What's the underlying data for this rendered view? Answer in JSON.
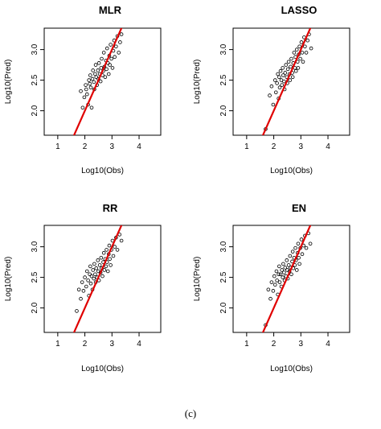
{
  "figure": {
    "caption": "(c)"
  },
  "chart_data": [
    {
      "type": "scatter",
      "title": "MLR",
      "xlabel": "Log10(Obs)",
      "ylabel": "Log10(Pred)",
      "xlim": [
        0.5,
        4.8
      ],
      "ylim": [
        1.6,
        3.35
      ],
      "xticks": [
        "1",
        "2",
        "3",
        "4"
      ],
      "yticks": [
        "2.0",
        "2.5",
        "3.0"
      ],
      "grid": false,
      "reference_line": {
        "color": "#e00000",
        "slope": 1,
        "intercept": 0
      },
      "points": [
        [
          1.85,
          2.32
        ],
        [
          1.92,
          2.05
        ],
        [
          1.98,
          2.22
        ],
        [
          2.03,
          2.42
        ],
        [
          2.05,
          2.35
        ],
        [
          2.08,
          2.27
        ],
        [
          2.12,
          2.1
        ],
        [
          2.15,
          2.5
        ],
        [
          2.18,
          2.44
        ],
        [
          2.2,
          2.58
        ],
        [
          2.22,
          2.38
        ],
        [
          2.25,
          2.05
        ],
        [
          2.28,
          2.52
        ],
        [
          2.3,
          2.66
        ],
        [
          2.33,
          2.47
        ],
        [
          2.35,
          2.35
        ],
        [
          2.38,
          2.6
        ],
        [
          2.4,
          2.75
        ],
        [
          2.42,
          2.55
        ],
        [
          2.45,
          2.42
        ],
        [
          2.48,
          2.66
        ],
        [
          2.5,
          2.52
        ],
        [
          2.52,
          2.78
        ],
        [
          2.55,
          2.6
        ],
        [
          2.58,
          2.48
        ],
        [
          2.6,
          2.7
        ],
        [
          2.62,
          2.85
        ],
        [
          2.65,
          2.58
        ],
        [
          2.68,
          2.65
        ],
        [
          2.7,
          2.95
        ],
        [
          2.72,
          2.72
        ],
        [
          2.75,
          2.55
        ],
        [
          2.78,
          2.82
        ],
        [
          2.8,
          2.68
        ],
        [
          2.82,
          3.02
        ],
        [
          2.85,
          2.78
        ],
        [
          2.88,
          2.6
        ],
        [
          2.9,
          2.9
        ],
        [
          2.92,
          2.75
        ],
        [
          2.95,
          3.08
        ],
        [
          2.98,
          2.85
        ],
        [
          3.02,
          2.7
        ],
        [
          3.05,
          2.98
        ],
        [
          3.08,
          3.15
        ],
        [
          3.1,
          2.88
        ],
        [
          3.15,
          3.05
        ],
        [
          3.2,
          3.22
        ],
        [
          3.25,
          2.95
        ],
        [
          3.3,
          3.12
        ],
        [
          3.35,
          3.25
        ]
      ]
    },
    {
      "type": "scatter",
      "title": "LASSO",
      "xlabel": "Log10(Obs)",
      "ylabel": "Log10(Pred)",
      "xlim": [
        0.5,
        4.8
      ],
      "ylim": [
        1.6,
        3.35
      ],
      "xticks": [
        "1",
        "2",
        "3",
        "4"
      ],
      "yticks": [
        "2.0",
        "2.5",
        "3.0"
      ],
      "grid": false,
      "reference_line": {
        "color": "#e00000",
        "slope": 1,
        "intercept": 0
      },
      "points": [
        [
          1.7,
          1.7
        ],
        [
          1.85,
          2.25
        ],
        [
          1.92,
          2.4
        ],
        [
          1.98,
          2.1
        ],
        [
          2.05,
          2.5
        ],
        [
          2.08,
          2.3
        ],
        [
          2.12,
          2.45
        ],
        [
          2.15,
          2.6
        ],
        [
          2.18,
          2.2
        ],
        [
          2.2,
          2.55
        ],
        [
          2.22,
          2.38
        ],
        [
          2.25,
          2.65
        ],
        [
          2.28,
          2.5
        ],
        [
          2.3,
          2.42
        ],
        [
          2.33,
          2.7
        ],
        [
          2.35,
          2.58
        ],
        [
          2.38,
          2.48
        ],
        [
          2.4,
          2.35
        ],
        [
          2.42,
          2.62
        ],
        [
          2.45,
          2.75
        ],
        [
          2.48,
          2.55
        ],
        [
          2.5,
          2.45
        ],
        [
          2.52,
          2.68
        ],
        [
          2.55,
          2.8
        ],
        [
          2.58,
          2.6
        ],
        [
          2.6,
          2.5
        ],
        [
          2.62,
          2.72
        ],
        [
          2.65,
          2.85
        ],
        [
          2.68,
          2.62
        ],
        [
          2.7,
          2.55
        ],
        [
          2.72,
          2.78
        ],
        [
          2.75,
          2.95
        ],
        [
          2.78,
          2.7
        ],
        [
          2.8,
          2.88
        ],
        [
          2.82,
          2.65
        ],
        [
          2.85,
          3.0
        ],
        [
          2.88,
          2.8
        ],
        [
          2.9,
          2.7
        ],
        [
          2.92,
          2.92
        ],
        [
          2.95,
          3.05
        ],
        [
          2.98,
          2.85
        ],
        [
          3.02,
          3.12
        ],
        [
          3.05,
          2.95
        ],
        [
          3.08,
          2.8
        ],
        [
          3.12,
          3.2
        ],
        [
          3.15,
          3.05
        ],
        [
          3.2,
          2.95
        ],
        [
          3.25,
          3.15
        ],
        [
          3.3,
          3.25
        ],
        [
          3.38,
          3.02
        ]
      ]
    },
    {
      "type": "scatter",
      "title": "RR",
      "xlabel": "Log10(Obs)",
      "ylabel": "Log10(Pred)",
      "xlim": [
        0.5,
        4.8
      ],
      "ylim": [
        1.6,
        3.35
      ],
      "xticks": [
        "1",
        "2",
        "3",
        "4"
      ],
      "yticks": [
        "2.0",
        "2.5",
        "3.0"
      ],
      "grid": false,
      "reference_line": {
        "color": "#e00000",
        "slope": 1,
        "intercept": 0
      },
      "points": [
        [
          1.7,
          1.95
        ],
        [
          1.78,
          2.3
        ],
        [
          1.85,
          2.15
        ],
        [
          1.9,
          2.42
        ],
        [
          1.95,
          2.28
        ],
        [
          2.0,
          2.5
        ],
        [
          2.05,
          2.35
        ],
        [
          2.08,
          2.6
        ],
        [
          2.12,
          2.45
        ],
        [
          2.15,
          2.2
        ],
        [
          2.18,
          2.55
        ],
        [
          2.2,
          2.68
        ],
        [
          2.22,
          2.4
        ],
        [
          2.25,
          2.52
        ],
        [
          2.28,
          2.3
        ],
        [
          2.3,
          2.62
        ],
        [
          2.33,
          2.48
        ],
        [
          2.35,
          2.72
        ],
        [
          2.38,
          2.55
        ],
        [
          2.4,
          2.42
        ],
        [
          2.42,
          2.65
        ],
        [
          2.45,
          2.5
        ],
        [
          2.48,
          2.78
        ],
        [
          2.5,
          2.6
        ],
        [
          2.52,
          2.45
        ],
        [
          2.55,
          2.7
        ],
        [
          2.58,
          2.58
        ],
        [
          2.6,
          2.82
        ],
        [
          2.62,
          2.65
        ],
        [
          2.65,
          2.52
        ],
        [
          2.68,
          2.75
        ],
        [
          2.7,
          2.9
        ],
        [
          2.72,
          2.62
        ],
        [
          2.75,
          2.8
        ],
        [
          2.78,
          2.68
        ],
        [
          2.8,
          2.95
        ],
        [
          2.82,
          2.75
        ],
        [
          2.85,
          2.6
        ],
        [
          2.88,
          2.88
        ],
        [
          2.9,
          3.02
        ],
        [
          2.92,
          2.8
        ],
        [
          2.95,
          2.7
        ],
        [
          2.98,
          2.95
        ],
        [
          3.02,
          3.1
        ],
        [
          3.05,
          2.85
        ],
        [
          3.1,
          3.0
        ],
        [
          3.15,
          3.15
        ],
        [
          3.2,
          2.95
        ],
        [
          3.28,
          3.2
        ],
        [
          3.35,
          3.1
        ]
      ]
    },
    {
      "type": "scatter",
      "title": "EN",
      "xlabel": "Log10(Obs)",
      "ylabel": "Log10(Pred)",
      "xlim": [
        0.5,
        4.8
      ],
      "ylim": [
        1.6,
        3.35
      ],
      "xticks": [
        "1",
        "2",
        "3",
        "4"
      ],
      "yticks": [
        "2.0",
        "2.5",
        "3.0"
      ],
      "grid": false,
      "reference_line": {
        "color": "#e00000",
        "slope": 1,
        "intercept": 0
      },
      "points": [
        [
          1.7,
          1.72
        ],
        [
          1.8,
          2.3
        ],
        [
          1.88,
          2.15
        ],
        [
          1.92,
          2.42
        ],
        [
          1.98,
          2.28
        ],
        [
          2.02,
          2.52
        ],
        [
          2.05,
          2.38
        ],
        [
          2.1,
          2.6
        ],
        [
          2.12,
          2.45
        ],
        [
          2.15,
          2.22
        ],
        [
          2.18,
          2.55
        ],
        [
          2.2,
          2.68
        ],
        [
          2.22,
          2.42
        ],
        [
          2.25,
          2.55
        ],
        [
          2.28,
          2.35
        ],
        [
          2.3,
          2.62
        ],
        [
          2.33,
          2.5
        ],
        [
          2.35,
          2.72
        ],
        [
          2.38,
          2.58
        ],
        [
          2.4,
          2.45
        ],
        [
          2.42,
          2.66
        ],
        [
          2.45,
          2.52
        ],
        [
          2.48,
          2.78
        ],
        [
          2.5,
          2.62
        ],
        [
          2.52,
          2.48
        ],
        [
          2.55,
          2.7
        ],
        [
          2.58,
          2.6
        ],
        [
          2.6,
          2.85
        ],
        [
          2.62,
          2.66
        ],
        [
          2.65,
          2.55
        ],
        [
          2.68,
          2.76
        ],
        [
          2.7,
          2.92
        ],
        [
          2.72,
          2.65
        ],
        [
          2.75,
          2.82
        ],
        [
          2.78,
          2.7
        ],
        [
          2.8,
          2.98
        ],
        [
          2.82,
          2.78
        ],
        [
          2.85,
          2.62
        ],
        [
          2.88,
          2.9
        ],
        [
          2.9,
          3.05
        ],
        [
          2.92,
          2.82
        ],
        [
          2.95,
          2.72
        ],
        [
          2.98,
          2.98
        ],
        [
          3.02,
          3.12
        ],
        [
          3.05,
          2.88
        ],
        [
          3.1,
          3.02
        ],
        [
          3.15,
          3.18
        ],
        [
          3.2,
          2.98
        ],
        [
          3.28,
          3.22
        ],
        [
          3.35,
          3.05
        ]
      ]
    }
  ]
}
